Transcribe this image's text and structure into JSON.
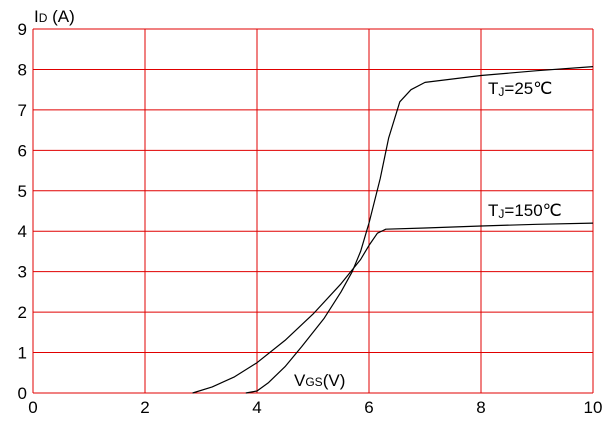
{
  "chart_data": {
    "type": "line",
    "title": "",
    "ylabel_main": "I",
    "ylabel_sub": "D",
    "ylabel_unit": " (A)",
    "xlabel_main": "V",
    "xlabel_sub": "GS",
    "xlabel_unit": "(V)",
    "xlim": [
      0,
      10
    ],
    "ylim": [
      0,
      9
    ],
    "xticks": [
      "0",
      "2",
      "4",
      "6",
      "8",
      "10"
    ],
    "yticks": [
      "0",
      "1",
      "2",
      "3",
      "4",
      "5",
      "6",
      "7",
      "8",
      "9"
    ],
    "grid": true,
    "grid_color": "#e00000",
    "line_color": "#000000",
    "series": [
      {
        "label_main": "T",
        "label_sub": "J",
        "label_rest": "=25℃",
        "points": [
          [
            3.8,
            0
          ],
          [
            4.0,
            0.05
          ],
          [
            4.2,
            0.25
          ],
          [
            4.5,
            0.65
          ],
          [
            4.8,
            1.15
          ],
          [
            5.2,
            1.85
          ],
          [
            5.5,
            2.5
          ],
          [
            5.7,
            3.0
          ],
          [
            5.85,
            3.5
          ],
          [
            6.0,
            4.2
          ],
          [
            6.2,
            5.3
          ],
          [
            6.35,
            6.3
          ],
          [
            6.55,
            7.2
          ],
          [
            6.75,
            7.5
          ],
          [
            7.0,
            7.68
          ],
          [
            8.0,
            7.85
          ],
          [
            9.0,
            7.97
          ],
          [
            10.0,
            8.07
          ]
        ]
      },
      {
        "label_main": "T",
        "label_sub": "J",
        "label_rest": "=150℃",
        "points": [
          [
            2.85,
            0
          ],
          [
            3.2,
            0.15
          ],
          [
            3.6,
            0.4
          ],
          [
            4.0,
            0.75
          ],
          [
            4.5,
            1.3
          ],
          [
            5.0,
            1.95
          ],
          [
            5.5,
            2.7
          ],
          [
            5.85,
            3.3
          ],
          [
            6.0,
            3.65
          ],
          [
            6.15,
            3.95
          ],
          [
            6.3,
            4.05
          ],
          [
            7.0,
            4.08
          ],
          [
            8.0,
            4.13
          ],
          [
            9.0,
            4.17
          ],
          [
            10.0,
            4.2
          ]
        ]
      }
    ]
  }
}
